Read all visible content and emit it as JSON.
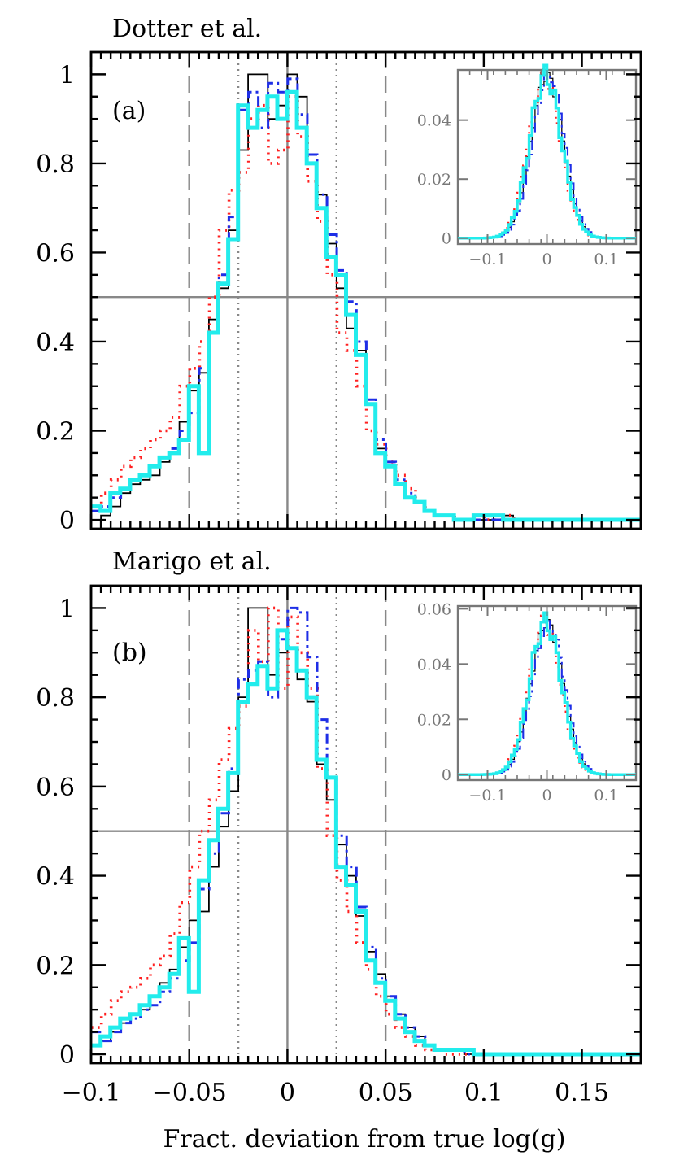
{
  "figure": {
    "xlabel": "Fract. deviation from true log(g)"
  },
  "chart_data": [
    {
      "type": "histogram",
      "title": "Dotter et al.",
      "panel_label": "(a)",
      "xlim": [
        -0.1,
        0.18
      ],
      "ylim": [
        -0.02,
        1.05
      ],
      "xticks": [
        -0.1,
        -0.05,
        0,
        0.05,
        0.1,
        0.15
      ],
      "xtick_labels": [
        "−0.1",
        "−0.05",
        "0",
        "0.05",
        "0.1",
        "0.15"
      ],
      "yticks": [
        0,
        0.2,
        0.4,
        0.6,
        0.8,
        1
      ],
      "ytick_labels": [
        "0",
        "0.2",
        "0.4",
        "0.6",
        "0.8",
        "1"
      ],
      "reference_lines": {
        "vertical_solid": [
          0
        ],
        "vertical_dotted": [
          -0.025,
          0.025
        ],
        "vertical_dashed": [
          -0.05,
          0.05
        ],
        "horizontal_solid": [
          0.5
        ]
      },
      "bin_width": 0.005,
      "series": [
        {
          "color": "#000000",
          "style": "solid-thin",
          "values": [
            0.0,
            0.01,
            0.03,
            0.06,
            0.08,
            0.09,
            0.1,
            0.13,
            0.15,
            0.22,
            0.29,
            0.33,
            0.45,
            0.52,
            0.65,
            0.83,
            1.0,
            1.0,
            0.9,
            0.93,
            1.0,
            0.95,
            0.8,
            0.73,
            0.62,
            0.52,
            0.43,
            0.38,
            0.26,
            0.16,
            0.12,
            0.08,
            0.05,
            0.04,
            0.02,
            0.01,
            0.01,
            0.0,
            0.0,
            0.0,
            0.0,
            0.01,
            0.01,
            0.0,
            0.0,
            0.0,
            0.0,
            0.0,
            0.0,
            0.0,
            0.0,
            0.0,
            0.0,
            0.0,
            0.0,
            0.0
          ]
        },
        {
          "color": "#ff2020",
          "style": "dotted",
          "values": [
            0.03,
            0.06,
            0.09,
            0.12,
            0.14,
            0.16,
            0.18,
            0.2,
            0.23,
            0.3,
            0.34,
            0.4,
            0.5,
            0.65,
            0.74,
            0.78,
            0.9,
            0.93,
            0.8,
            0.83,
            0.95,
            0.86,
            0.76,
            0.67,
            0.55,
            0.42,
            0.38,
            0.3,
            0.2,
            0.17,
            0.13,
            0.1,
            0.07,
            0.04,
            0.02,
            0.01,
            0.01,
            0.0,
            0.0,
            0.01,
            0.0,
            0.0,
            0.01,
            0.0,
            0.0,
            0.0,
            0.0,
            0.0,
            0.0,
            0.0,
            0.0,
            0.0,
            0.0,
            0.0,
            0.0,
            0.0
          ]
        },
        {
          "color": "#1e2ee6",
          "style": "dash-dot",
          "values": [
            0.02,
            0.03,
            0.05,
            0.07,
            0.09,
            0.1,
            0.12,
            0.14,
            0.16,
            0.2,
            0.24,
            0.34,
            0.42,
            0.55,
            0.68,
            0.92,
            0.96,
            0.88,
            0.98,
            0.96,
            0.99,
            0.91,
            0.82,
            0.73,
            0.64,
            0.56,
            0.49,
            0.4,
            0.27,
            0.18,
            0.13,
            0.09,
            0.06,
            0.04,
            0.02,
            0.01,
            0.01,
            0.0,
            0.0,
            0.0,
            0.0,
            0.0,
            0.0,
            0.0,
            0.0,
            0.0,
            0.0,
            0.0,
            0.0,
            0.0,
            0.0,
            0.0,
            0.0,
            0.0,
            0.0,
            0.0
          ]
        },
        {
          "color": "#22ecec",
          "style": "solid-thick",
          "values": [
            0.03,
            0.02,
            0.06,
            0.07,
            0.09,
            0.1,
            0.12,
            0.14,
            0.15,
            0.18,
            0.3,
            0.15,
            0.42,
            0.53,
            0.63,
            0.93,
            0.88,
            0.92,
            0.95,
            0.9,
            0.96,
            0.88,
            0.8,
            0.7,
            0.59,
            0.55,
            0.46,
            0.37,
            0.26,
            0.15,
            0.12,
            0.08,
            0.05,
            0.04,
            0.02,
            0.01,
            0.01,
            0.0,
            0.0,
            0.01,
            0.01,
            0.01,
            0.0,
            0.0,
            0.0,
            0.0,
            0.0,
            0.0,
            0.0,
            0.0,
            0.0,
            0.0,
            0.0,
            0.0,
            0.0,
            0.0
          ]
        }
      ],
      "inset": {
        "type": "histogram",
        "xlim": [
          -0.15,
          0.15
        ],
        "ylim": [
          -0.002,
          0.057
        ],
        "xticks": [
          -0.1,
          0,
          0.1
        ],
        "xtick_labels": [
          "−0.1",
          "0",
          "0.1"
        ],
        "yticks": [
          0,
          0.02,
          0.04
        ],
        "ytick_labels": [
          "0",
          "0.02",
          "0.04"
        ],
        "amplitude": 0.055,
        "sigma": 0.027
      }
    },
    {
      "type": "histogram",
      "title": "Marigo et al.",
      "panel_label": "(b)",
      "xlim": [
        -0.1,
        0.18
      ],
      "ylim": [
        -0.02,
        1.05
      ],
      "xticks": [
        -0.1,
        -0.05,
        0,
        0.05,
        0.1,
        0.15
      ],
      "xtick_labels": [
        "−0.1",
        "−0.05",
        "0",
        "0.05",
        "0.1",
        "0.15"
      ],
      "yticks": [
        0,
        0.2,
        0.4,
        0.6,
        0.8,
        1
      ],
      "ytick_labels": [
        "0",
        "0.2",
        "0.4",
        "0.6",
        "0.8",
        "1"
      ],
      "reference_lines": {
        "vertical_solid": [
          0
        ],
        "vertical_dotted": [
          -0.025,
          0.025
        ],
        "vertical_dashed": [
          -0.05,
          0.05
        ],
        "horizontal_solid": [
          0.5
        ]
      },
      "bin_width": 0.005,
      "series": [
        {
          "color": "#000000",
          "style": "solid-thin",
          "values": [
            0.02,
            0.03,
            0.05,
            0.07,
            0.09,
            0.1,
            0.13,
            0.16,
            0.19,
            0.24,
            0.3,
            0.32,
            0.42,
            0.51,
            0.59,
            0.8,
            1.0,
            1.0,
            0.85,
            0.9,
            0.91,
            0.84,
            0.79,
            0.65,
            0.57,
            0.47,
            0.4,
            0.31,
            0.23,
            0.18,
            0.13,
            0.09,
            0.06,
            0.04,
            0.02,
            0.01,
            0.01,
            0.01,
            0.0,
            0.0,
            0.0,
            0.0,
            0.0,
            0.0,
            0.0,
            0.0,
            0.0,
            0.0,
            0.0,
            0.0,
            0.0,
            0.0,
            0.0,
            0.0,
            0.0,
            0.0
          ]
        },
        {
          "color": "#ff2020",
          "style": "dotted",
          "values": [
            0.06,
            0.09,
            0.12,
            0.14,
            0.15,
            0.17,
            0.2,
            0.22,
            0.27,
            0.34,
            0.42,
            0.5,
            0.57,
            0.66,
            0.73,
            0.78,
            0.95,
            0.88,
            1.0,
            0.82,
            0.98,
            0.9,
            0.82,
            0.64,
            0.49,
            0.39,
            0.32,
            0.25,
            0.19,
            0.13,
            0.09,
            0.06,
            0.04,
            0.02,
            0.01,
            0.01,
            0.0,
            0.0,
            0.0,
            0.0,
            0.0,
            0.0,
            0.0,
            0.0,
            0.0,
            0.0,
            0.0,
            0.0,
            0.0,
            0.0,
            0.0,
            0.0,
            0.0,
            0.0,
            0.0,
            0.0
          ]
        },
        {
          "color": "#1e2ee6",
          "style": "dash-dot",
          "values": [
            0.05,
            0.03,
            0.05,
            0.07,
            0.08,
            0.1,
            0.11,
            0.14,
            0.17,
            0.21,
            0.25,
            0.37,
            0.45,
            0.54,
            0.64,
            0.84,
            0.86,
            0.88,
            0.8,
            0.93,
            1.0,
            0.99,
            0.89,
            0.75,
            0.62,
            0.49,
            0.42,
            0.33,
            0.24,
            0.17,
            0.13,
            0.09,
            0.06,
            0.04,
            0.02,
            0.01,
            0.01,
            0.01,
            0.0,
            0.0,
            0.0,
            0.0,
            0.0,
            0.0,
            0.0,
            0.0,
            0.0,
            0.0,
            0.0,
            0.0,
            0.0,
            0.0,
            0.0,
            0.0,
            0.0,
            0.0
          ]
        },
        {
          "color": "#22ecec",
          "style": "solid-thick",
          "values": [
            0.02,
            0.04,
            0.06,
            0.08,
            0.09,
            0.11,
            0.13,
            0.15,
            0.18,
            0.26,
            0.14,
            0.39,
            0.48,
            0.55,
            0.63,
            0.79,
            0.83,
            0.87,
            0.82,
            0.95,
            0.91,
            0.86,
            0.8,
            0.66,
            0.62,
            0.42,
            0.38,
            0.32,
            0.21,
            0.16,
            0.12,
            0.08,
            0.05,
            0.03,
            0.02,
            0.01,
            0.01,
            0.01,
            0.01,
            0.0,
            0.0,
            0.0,
            0.0,
            0.0,
            0.0,
            0.0,
            0.0,
            0.0,
            0.0,
            0.0,
            0.0,
            0.0,
            0.0,
            0.0,
            0.0,
            0.0
          ]
        }
      ],
      "inset": {
        "type": "histogram",
        "xlim": [
          -0.15,
          0.15
        ],
        "ylim": [
          -0.002,
          0.061
        ],
        "xticks": [
          -0.1,
          0,
          0.1
        ],
        "xtick_labels": [
          "−0.1",
          "0",
          "0.1"
        ],
        "yticks": [
          0,
          0.02,
          0.04,
          0.06
        ],
        "ytick_labels": [
          "0",
          "0.02",
          "0.04",
          "0.06"
        ],
        "amplitude": 0.055,
        "sigma": 0.027
      }
    }
  ]
}
